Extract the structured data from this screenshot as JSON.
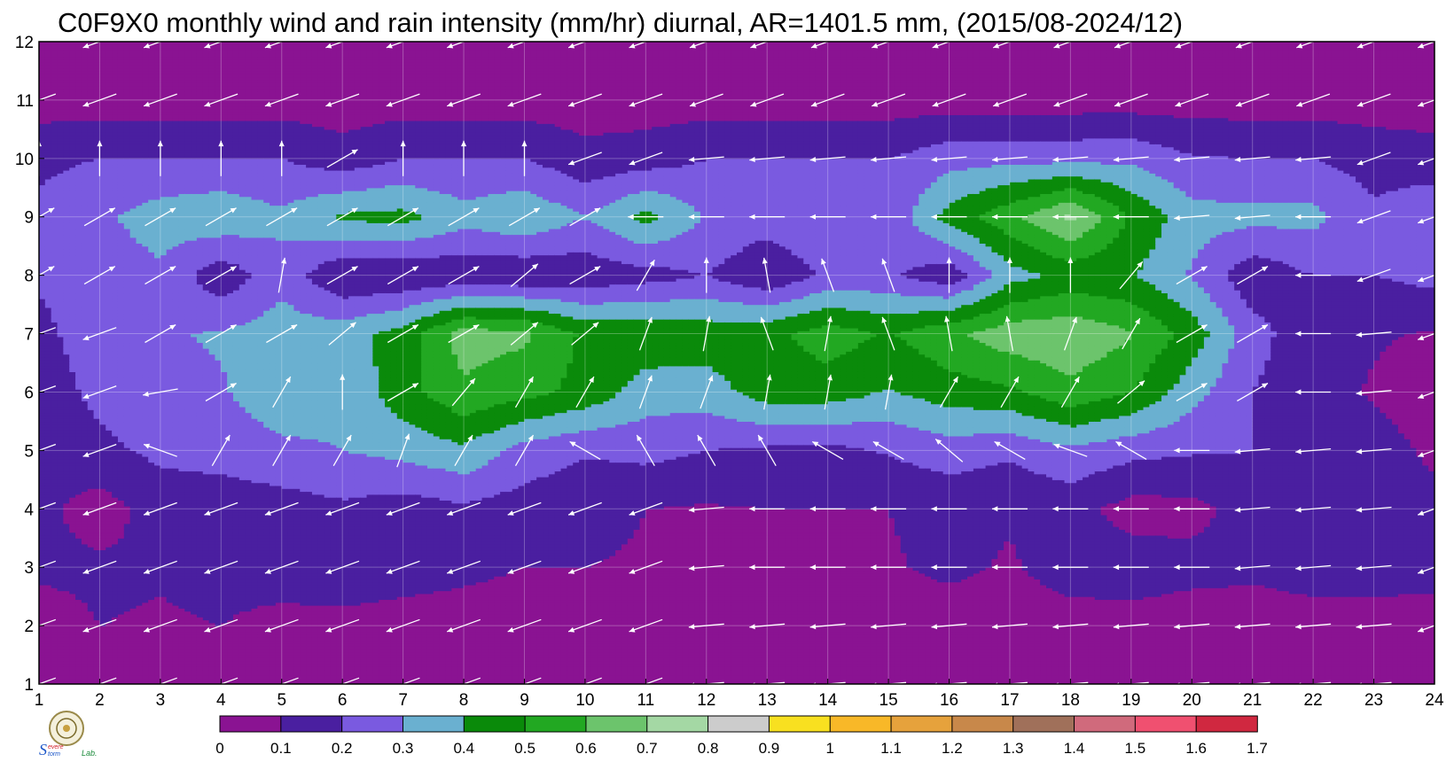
{
  "chart_data": {
    "type": "heatmap",
    "title": "C0F9X0 monthly wind and rain intensity (mm/hr) diurnal, AR=1401.5 mm, (2015/08-2024/12)",
    "xlabel": "",
    "ylabel": "",
    "x_ticks": [
      "1",
      "2",
      "3",
      "4",
      "5",
      "6",
      "7",
      "8",
      "9",
      "10",
      "11",
      "12",
      "13",
      "14",
      "15",
      "16",
      "17",
      "18",
      "19",
      "20",
      "21",
      "22",
      "23",
      "24"
    ],
    "y_ticks": [
      "1",
      "2",
      "3",
      "4",
      "5",
      "6",
      "7",
      "8",
      "9",
      "10",
      "11",
      "12"
    ],
    "xlim": [
      1,
      24
    ],
    "ylim": [
      1,
      12
    ],
    "grid": true,
    "contour_levels": [
      0,
      0.1,
      0.2,
      0.3,
      0.4,
      0.5,
      0.6,
      0.7,
      0.8,
      0.9,
      1,
      1.1,
      1.2,
      1.3,
      1.4,
      1.5,
      1.6,
      1.7
    ],
    "colorbar_labels": [
      "0",
      "0.1",
      "0.2",
      "0.3",
      "0.4",
      "0.5",
      "0.6",
      "0.7",
      "0.8",
      "0.9",
      "1",
      "1.1",
      "1.2",
      "1.3",
      "1.4",
      "1.5",
      "1.6",
      "1.7"
    ],
    "colorbar_colors": [
      "#8a1392",
      "#4a1fa0",
      "#7a5ae0",
      "#6ab0d0",
      "#0a8a0a",
      "#22a822",
      "#6cc46c",
      "#a4d8a4",
      "#cccccc",
      "#f8e020",
      "#f8b828",
      "#e6a23c",
      "#c8884a",
      "#a0705a",
      "#d06a7c",
      "#f05070",
      "#d02840"
    ],
    "contour_line_color": "#f0a020",
    "arrow_color": "#ffffff",
    "rain_intensity_grid": [
      [
        0.02,
        0.02,
        0.02,
        0.02,
        0.02,
        0.03,
        0.03,
        0.03,
        0.03,
        0.03,
        0.05,
        0.04,
        0.03,
        0.03,
        0.03,
        0.03,
        0.03,
        0.03,
        0.03,
        0.03,
        0.03,
        0.03,
        0.03,
        0.03
      ],
      [
        0.05,
        0.1,
        0.09,
        0.1,
        0.08,
        0.08,
        0.07,
        0.06,
        0.05,
        0.05,
        0.05,
        0.05,
        0.05,
        0.05,
        0.05,
        0.05,
        0.05,
        0.06,
        0.06,
        0.05,
        0.05,
        0.06,
        0.06,
        0.06
      ],
      [
        0.12,
        0.12,
        0.11,
        0.12,
        0.13,
        0.14,
        0.13,
        0.12,
        0.1,
        0.1,
        0.09,
        0.09,
        0.09,
        0.09,
        0.09,
        0.12,
        0.09,
        0.14,
        0.15,
        0.13,
        0.12,
        0.14,
        0.14,
        0.13
      ],
      [
        0.13,
        0.05,
        0.15,
        0.14,
        0.15,
        0.18,
        0.15,
        0.18,
        0.15,
        0.13,
        0.1,
        0.09,
        0.1,
        0.1,
        0.1,
        0.13,
        0.11,
        0.14,
        0.06,
        0.07,
        0.14,
        0.18,
        0.16,
        0.13
      ],
      [
        0.14,
        0.18,
        0.22,
        0.24,
        0.28,
        0.3,
        0.33,
        0.38,
        0.26,
        0.21,
        0.23,
        0.2,
        0.18,
        0.17,
        0.21,
        0.25,
        0.22,
        0.28,
        0.23,
        0.21,
        0.2,
        0.18,
        0.14,
        0.08
      ],
      [
        0.16,
        0.22,
        0.27,
        0.29,
        0.36,
        0.32,
        0.46,
        0.58,
        0.53,
        0.47,
        0.35,
        0.35,
        0.45,
        0.45,
        0.39,
        0.45,
        0.48,
        0.57,
        0.5,
        0.34,
        0.2,
        0.14,
        0.09,
        0.05
      ],
      [
        0.18,
        0.24,
        0.29,
        0.31,
        0.35,
        0.36,
        0.44,
        0.65,
        0.62,
        0.48,
        0.47,
        0.46,
        0.47,
        0.55,
        0.49,
        0.58,
        0.66,
        0.68,
        0.61,
        0.46,
        0.24,
        0.13,
        0.11,
        0.09
      ],
      [
        0.21,
        0.24,
        0.28,
        0.13,
        0.27,
        0.1,
        0.11,
        0.12,
        0.11,
        0.13,
        0.16,
        0.2,
        0.11,
        0.22,
        0.22,
        0.13,
        0.36,
        0.43,
        0.41,
        0.29,
        0.13,
        0.2,
        0.2,
        0.23
      ],
      [
        0.22,
        0.28,
        0.35,
        0.38,
        0.32,
        0.42,
        0.43,
        0.34,
        0.39,
        0.3,
        0.43,
        0.29,
        0.25,
        0.3,
        0.22,
        0.44,
        0.57,
        0.72,
        0.49,
        0.34,
        0.33,
        0.33,
        0.22,
        0.28
      ],
      [
        0.18,
        0.2,
        0.2,
        0.2,
        0.2,
        0.14,
        0.2,
        0.2,
        0.2,
        0.13,
        0.15,
        0.2,
        0.2,
        0.2,
        0.2,
        0.26,
        0.27,
        0.27,
        0.28,
        0.21,
        0.2,
        0.2,
        0.16,
        0.14
      ],
      [
        0.05,
        0.05,
        0.05,
        0.05,
        0.05,
        0.05,
        0.05,
        0.05,
        0.05,
        0.05,
        0.05,
        0.05,
        0.05,
        0.05,
        0.05,
        0.05,
        0.05,
        0.05,
        0.05,
        0.05,
        0.05,
        0.05,
        0.05,
        0.05
      ],
      [
        0.02,
        0.02,
        0.02,
        0.02,
        0.02,
        0.02,
        0.02,
        0.02,
        0.02,
        0.02,
        0.02,
        0.02,
        0.02,
        0.02,
        0.02,
        0.02,
        0.02,
        0.02,
        0.02,
        0.02,
        0.02,
        0.02,
        0.02,
        0.02
      ]
    ],
    "wind_direction_deg": [
      [
        200,
        200,
        200,
        200,
        200,
        200,
        200,
        200,
        200,
        200,
        200,
        185,
        185,
        185,
        185,
        185,
        185,
        185,
        185,
        185,
        185,
        185,
        185,
        200
      ],
      [
        200,
        200,
        200,
        200,
        200,
        200,
        200,
        200,
        200,
        200,
        200,
        185,
        185,
        185,
        185,
        185,
        185,
        185,
        185,
        185,
        185,
        185,
        185,
        200
      ],
      [
        200,
        200,
        200,
        200,
        200,
        200,
        200,
        200,
        200,
        200,
        200,
        185,
        180,
        180,
        180,
        180,
        180,
        180,
        180,
        180,
        185,
        185,
        185,
        200
      ],
      [
        200,
        200,
        200,
        200,
        200,
        200,
        200,
        200,
        200,
        200,
        200,
        185,
        180,
        180,
        180,
        180,
        180,
        180,
        180,
        180,
        185,
        185,
        185,
        200
      ],
      [
        200,
        200,
        160,
        60,
        60,
        60,
        70,
        60,
        60,
        150,
        120,
        120,
        120,
        150,
        150,
        140,
        150,
        160,
        150,
        180,
        185,
        185,
        185,
        200
      ],
      [
        200,
        200,
        190,
        30,
        60,
        90,
        30,
        50,
        60,
        60,
        70,
        70,
        80,
        80,
        80,
        60,
        60,
        60,
        40,
        30,
        30,
        180,
        185,
        200
      ],
      [
        200,
        200,
        30,
        30,
        30,
        40,
        30,
        30,
        40,
        40,
        70,
        80,
        110,
        80,
        110,
        100,
        100,
        70,
        60,
        30,
        30,
        180,
        185,
        200
      ],
      [
        30,
        30,
        30,
        30,
        80,
        30,
        30,
        30,
        40,
        30,
        60,
        90,
        100,
        110,
        110,
        90,
        90,
        90,
        50,
        30,
        30,
        180,
        200,
        200
      ],
      [
        30,
        30,
        30,
        30,
        30,
        30,
        30,
        30,
        30,
        30,
        180,
        180,
        180,
        180,
        180,
        180,
        180,
        180,
        180,
        185,
        185,
        180,
        200,
        200
      ],
      [
        90,
        90,
        90,
        90,
        90,
        30,
        90,
        90,
        90,
        200,
        200,
        185,
        185,
        185,
        185,
        185,
        185,
        185,
        185,
        185,
        185,
        185,
        200,
        200
      ],
      [
        200,
        200,
        200,
        200,
        200,
        200,
        200,
        200,
        200,
        200,
        200,
        200,
        200,
        200,
        200,
        200,
        200,
        200,
        200,
        200,
        200,
        200,
        200,
        200
      ],
      [
        200,
        200,
        200,
        200,
        200,
        200,
        200,
        200,
        200,
        200,
        200,
        200,
        200,
        200,
        200,
        200,
        200,
        200,
        200,
        200,
        200,
        200,
        200,
        200
      ]
    ],
    "logo": {
      "lab_text": "Lab."
    }
  }
}
